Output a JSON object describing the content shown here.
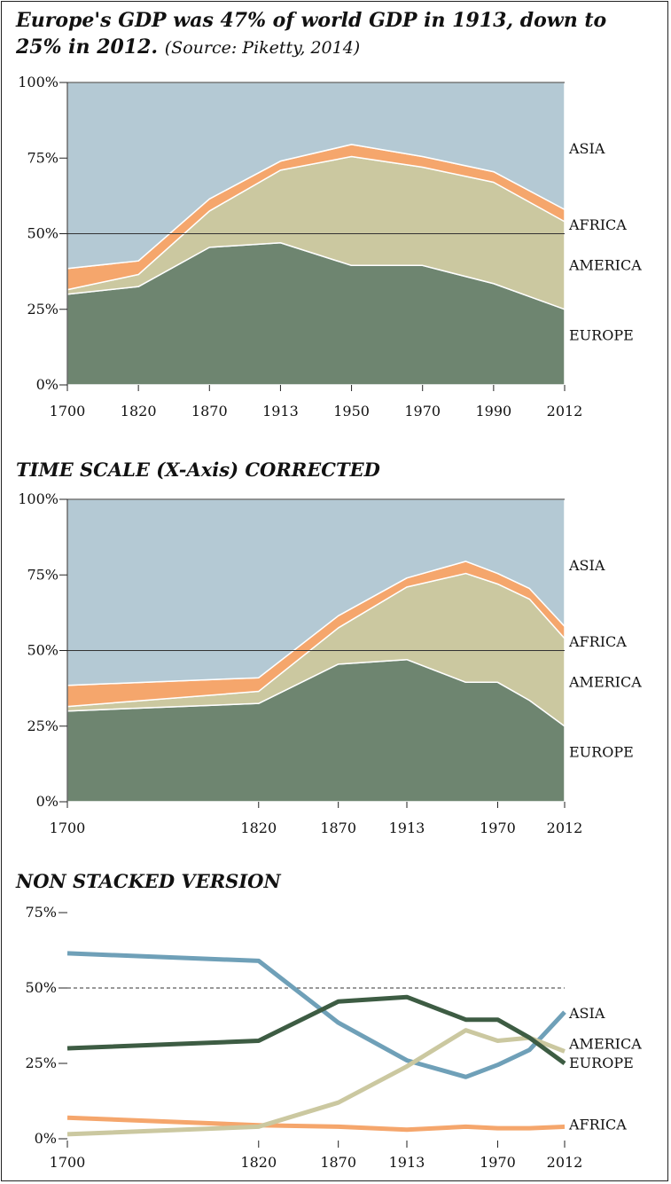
{
  "titles": {
    "main_bold": "Europe's GDP was 47% of world GDP in 1913, down to 25% in 2012.",
    "main_source": "(Source: Piketty, 2014)",
    "second": "TIME SCALE (X-Axis) CORRECTED",
    "third": "NON STACKED VERSION"
  },
  "colors": {
    "EUROPE": "#6e8570",
    "AMERICA": "#cbc8a0",
    "AFRICA": "#f5a66c",
    "ASIA": "#b4c9d4",
    "line_EUROPE": "#3d5c43",
    "line_AMERICA": "#cbc8a0",
    "line_AFRICA": "#f5a66c",
    "line_ASIA": "#6fa0b8"
  },
  "chart_data": [
    {
      "type": "area",
      "stacked": true,
      "x_spacing": "categorical",
      "categories": [
        "1700",
        "1820",
        "1870",
        "1913",
        "1950",
        "1970",
        "1990",
        "2012"
      ],
      "series": [
        {
          "name": "EUROPE",
          "values": [
            30,
            32.5,
            45.5,
            47,
            39.5,
            39.5,
            33.5,
            25
          ]
        },
        {
          "name": "AMERICA",
          "values": [
            1.5,
            4,
            12,
            24,
            36,
            32.5,
            33.5,
            29
          ]
        },
        {
          "name": "AFRICA",
          "values": [
            7,
            4.5,
            4,
            3,
            4,
            3.5,
            3.5,
            4
          ]
        },
        {
          "name": "ASIA",
          "values": [
            61.5,
            59,
            38.5,
            26,
            20.5,
            24.5,
            29.5,
            42
          ]
        }
      ],
      "yticks": [
        "0%",
        "25%",
        "50%",
        "75%",
        "100%"
      ],
      "ylim": [
        0,
        100
      ]
    },
    {
      "type": "area",
      "stacked": true,
      "x_spacing": "time",
      "x": [
        1700,
        1820,
        1870,
        1913,
        1950,
        1970,
        1990,
        2012
      ],
      "xtick_labels": [
        "1700",
        "1820",
        "1870",
        "1913",
        "1970",
        "2012"
      ],
      "series": [
        {
          "name": "EUROPE",
          "values": [
            30,
            32.5,
            45.5,
            47,
            39.5,
            39.5,
            33.5,
            25
          ]
        },
        {
          "name": "AMERICA",
          "values": [
            1.5,
            4,
            12,
            24,
            36,
            32.5,
            33.5,
            29
          ]
        },
        {
          "name": "AFRICA",
          "values": [
            7,
            4.5,
            4,
            3,
            4,
            3.5,
            3.5,
            4
          ]
        },
        {
          "name": "ASIA",
          "values": [
            61.5,
            59,
            38.5,
            26,
            20.5,
            24.5,
            29.5,
            42
          ]
        }
      ],
      "yticks": [
        "0%",
        "25%",
        "50%",
        "75%",
        "100%"
      ],
      "ylim": [
        0,
        100
      ]
    },
    {
      "type": "line",
      "x": [
        1700,
        1820,
        1870,
        1913,
        1950,
        1970,
        1990,
        2012
      ],
      "xtick_labels": [
        "1700",
        "1820",
        "1870",
        "1913",
        "1970",
        "2012"
      ],
      "series": [
        {
          "name": "EUROPE",
          "values": [
            30,
            32.5,
            45.5,
            47,
            39.5,
            39.5,
            33.5,
            25
          ]
        },
        {
          "name": "AMERICA",
          "values": [
            1.5,
            4,
            12,
            24,
            36,
            32.5,
            33.5,
            29
          ]
        },
        {
          "name": "AFRICA",
          "values": [
            7,
            4.5,
            4,
            3,
            4,
            3.5,
            3.5,
            4
          ]
        },
        {
          "name": "ASIA",
          "values": [
            61.5,
            59,
            38.5,
            26,
            20.5,
            24.5,
            29.5,
            42
          ]
        }
      ],
      "yticks": [
        "0%",
        "25%",
        "50%",
        "75%"
      ],
      "ylim": [
        0,
        75
      ],
      "reference_line": 50
    }
  ]
}
